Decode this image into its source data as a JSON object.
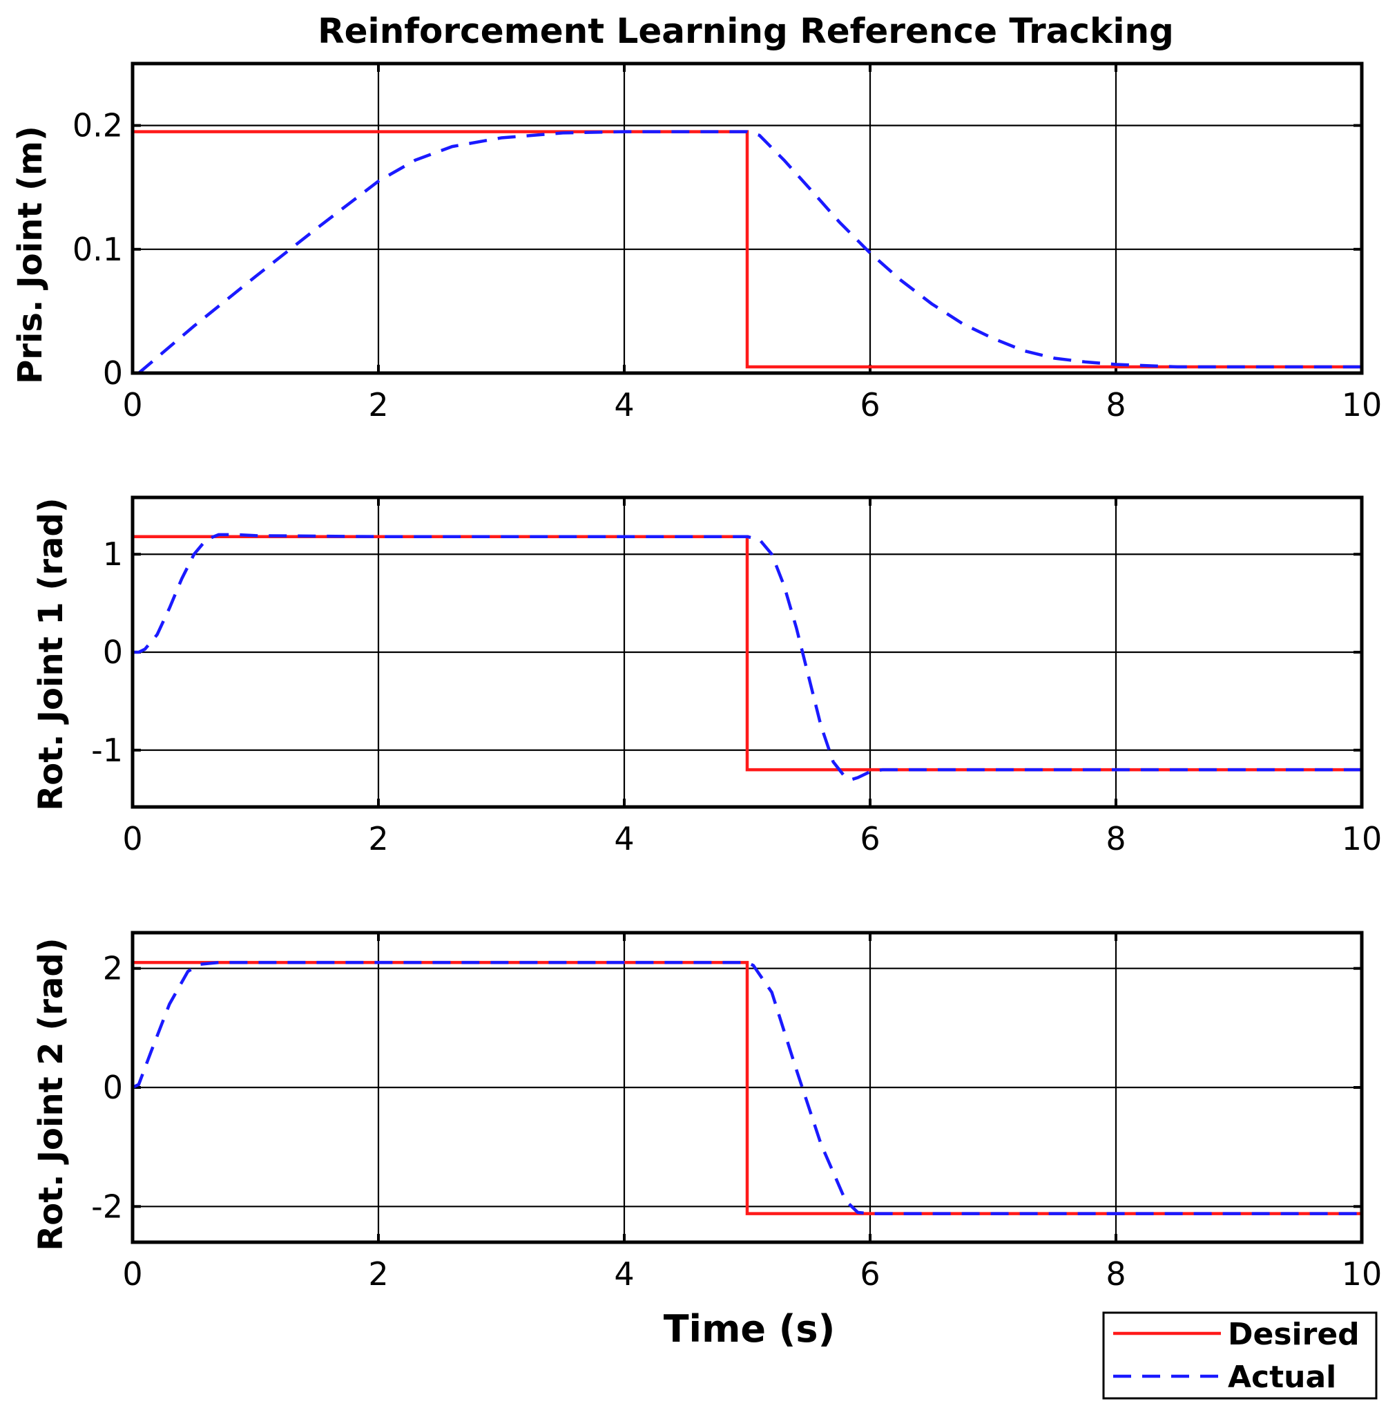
{
  "chart_data": [
    {
      "type": "line",
      "title": "Reinforcement Learning Reference Tracking",
      "xlabel": "",
      "ylabel": "Pris. Joint (m)",
      "xlim": [
        0,
        10
      ],
      "ylim": [
        0,
        0.25
      ],
      "xticks": [
        "0",
        "2",
        "4",
        "6",
        "8",
        "10"
      ],
      "yticks": [
        {
          "value": 0,
          "label": "0"
        },
        {
          "value": 0.1,
          "label": "0.1"
        },
        {
          "value": 0.2,
          "label": "0.2"
        }
      ],
      "grid": true,
      "series": [
        {
          "name": "Desired",
          "color": "#ff1a1a",
          "style": "solid",
          "x": [
            0,
            5,
            5,
            10
          ],
          "y": [
            0.195,
            0.195,
            0.005,
            0.005
          ]
        },
        {
          "name": "Actual",
          "color": "#1a1aff",
          "style": "dashed",
          "x": [
            0.05,
            0.5,
            1.0,
            1.5,
            2.0,
            2.3,
            2.6,
            3.0,
            3.5,
            4.0,
            4.5,
            5.0,
            5.1,
            5.3,
            5.5,
            5.75,
            6.0,
            6.25,
            6.5,
            6.75,
            7.0,
            7.25,
            7.5,
            7.75,
            8.0,
            8.5,
            9.0,
            10.0
          ],
          "y": [
            0.0,
            0.038,
            0.078,
            0.117,
            0.155,
            0.172,
            0.183,
            0.19,
            0.194,
            0.195,
            0.195,
            0.195,
            0.192,
            0.172,
            0.15,
            0.122,
            0.097,
            0.075,
            0.056,
            0.04,
            0.028,
            0.018,
            0.012,
            0.009,
            0.007,
            0.005,
            0.005,
            0.005
          ]
        }
      ]
    },
    {
      "type": "line",
      "title": "",
      "xlabel": "",
      "ylabel": "Rot. Joint 1 (rad)",
      "xlim": [
        0,
        10
      ],
      "ylim": [
        -1.58,
        1.58
      ],
      "xticks": [
        "0",
        "2",
        "4",
        "6",
        "8",
        "10"
      ],
      "yticks": [
        {
          "value": -1,
          "label": "-1"
        },
        {
          "value": 0,
          "label": "0"
        },
        {
          "value": 1,
          "label": "1"
        }
      ],
      "grid": true,
      "series": [
        {
          "name": "Desired",
          "color": "#ff1a1a",
          "style": "solid",
          "x": [
            0,
            5,
            5,
            10
          ],
          "y": [
            1.18,
            1.18,
            -1.2,
            -1.2
          ]
        },
        {
          "name": "Actual",
          "color": "#1a1aff",
          "style": "dashed",
          "x": [
            0.0,
            0.05,
            0.1,
            0.2,
            0.3,
            0.4,
            0.5,
            0.6,
            0.7,
            0.85,
            1.0,
            2.0,
            3.0,
            4.0,
            4.9,
            5.0,
            5.1,
            5.2,
            5.3,
            5.4,
            5.5,
            5.6,
            5.7,
            5.8,
            5.85,
            5.9,
            6.0,
            6.1,
            7.0,
            8.0,
            10.0
          ],
          "y": [
            0.0,
            0.0,
            0.03,
            0.18,
            0.45,
            0.75,
            1.0,
            1.15,
            1.2,
            1.2,
            1.19,
            1.18,
            1.18,
            1.18,
            1.18,
            1.18,
            1.15,
            1.0,
            0.68,
            0.25,
            -0.25,
            -0.75,
            -1.12,
            -1.28,
            -1.3,
            -1.28,
            -1.22,
            -1.2,
            -1.2,
            -1.2,
            -1.2
          ]
        }
      ]
    },
    {
      "type": "line",
      "title": "",
      "xlabel": "Time (s)",
      "ylabel": "Rot. Joint 2 (rad)",
      "xlim": [
        0,
        10
      ],
      "ylim": [
        -2.6,
        2.6
      ],
      "xticks": [
        "0",
        "2",
        "4",
        "6",
        "8",
        "10"
      ],
      "yticks": [
        {
          "value": -2,
          "label": "-2"
        },
        {
          "value": 0,
          "label": "0"
        },
        {
          "value": 2,
          "label": "2"
        }
      ],
      "grid": true,
      "series": [
        {
          "name": "Desired",
          "color": "#ff1a1a",
          "style": "solid",
          "x": [
            0,
            5,
            5,
            10
          ],
          "y": [
            2.1,
            2.1,
            -2.12,
            -2.12
          ]
        },
        {
          "name": "Actual",
          "color": "#1a1aff",
          "style": "dashed",
          "x": [
            0.0,
            0.05,
            0.15,
            0.3,
            0.45,
            0.55,
            0.7,
            1.0,
            2.0,
            3.0,
            4.0,
            5.0,
            5.05,
            5.2,
            5.4,
            5.6,
            5.8,
            5.9,
            6.0,
            7.0,
            8.0,
            10.0
          ],
          "y": [
            0.0,
            0.05,
            0.6,
            1.4,
            1.95,
            2.07,
            2.1,
            2.1,
            2.1,
            2.1,
            2.1,
            2.1,
            2.05,
            1.6,
            0.3,
            -0.95,
            -1.9,
            -2.1,
            -2.12,
            -2.12,
            -2.12,
            -2.12
          ]
        }
      ]
    }
  ],
  "legend": {
    "placement": "bottom-right",
    "entries": [
      {
        "label": "Desired",
        "color": "#ff1a1a",
        "style": "solid"
      },
      {
        "label": "Actual",
        "color": "#1a1aff",
        "style": "dashed"
      }
    ]
  }
}
